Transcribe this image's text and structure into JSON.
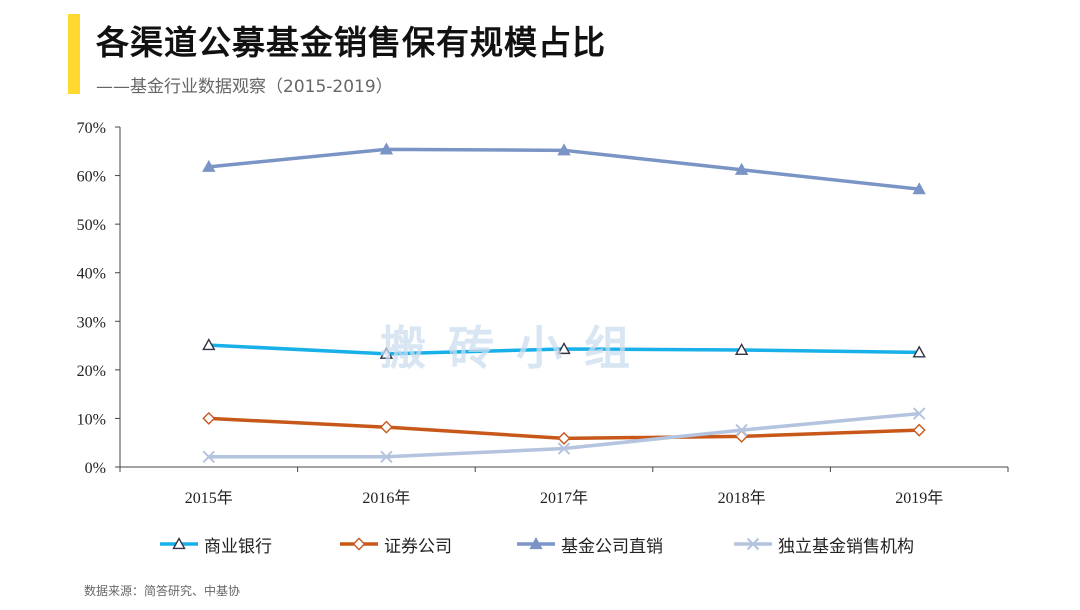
{
  "header": {
    "title": "各渠道公募基金销售保有规模占比",
    "subtitle": "——基金行业数据观察（2015-2019）",
    "accent_color": "#FFD92E"
  },
  "watermark": "搬砖小组",
  "footer": {
    "source": "数据来源：简答研究、中基协"
  },
  "chart_data": {
    "type": "line",
    "title": "各渠道公募基金销售保有规模占比",
    "subtitle": "——基金行业数据观察（2015-2019）",
    "xlabel": "",
    "ylabel": "",
    "categories": [
      "2015年",
      "2016年",
      "2017年",
      "2018年",
      "2019年"
    ],
    "yticks": [
      "0%",
      "10%",
      "20%",
      "30%",
      "40%",
      "50%",
      "60%",
      "70%"
    ],
    "ylim": [
      0,
      70
    ],
    "grid": false,
    "legend_position": "bottom",
    "series": [
      {
        "name": "商业银行",
        "values": [
          25.1,
          23.3,
          24.3,
          24.1,
          23.6
        ],
        "color": "#17B0E8",
        "marker": "triangle-open"
      },
      {
        "name": "证券公司",
        "values": [
          10.0,
          8.2,
          5.9,
          6.3,
          7.6
        ],
        "color": "#C8581A",
        "marker": "diamond-open"
      },
      {
        "name": "基金公司直销",
        "values": [
          61.8,
          65.4,
          65.2,
          61.2,
          57.2
        ],
        "color": "#7A95C5",
        "marker": "triangle-filled"
      },
      {
        "name": "独立基金销售机构",
        "values": [
          2.1,
          2.1,
          3.8,
          7.6,
          11.0
        ],
        "color": "#B4C3DE",
        "marker": "x"
      }
    ]
  }
}
